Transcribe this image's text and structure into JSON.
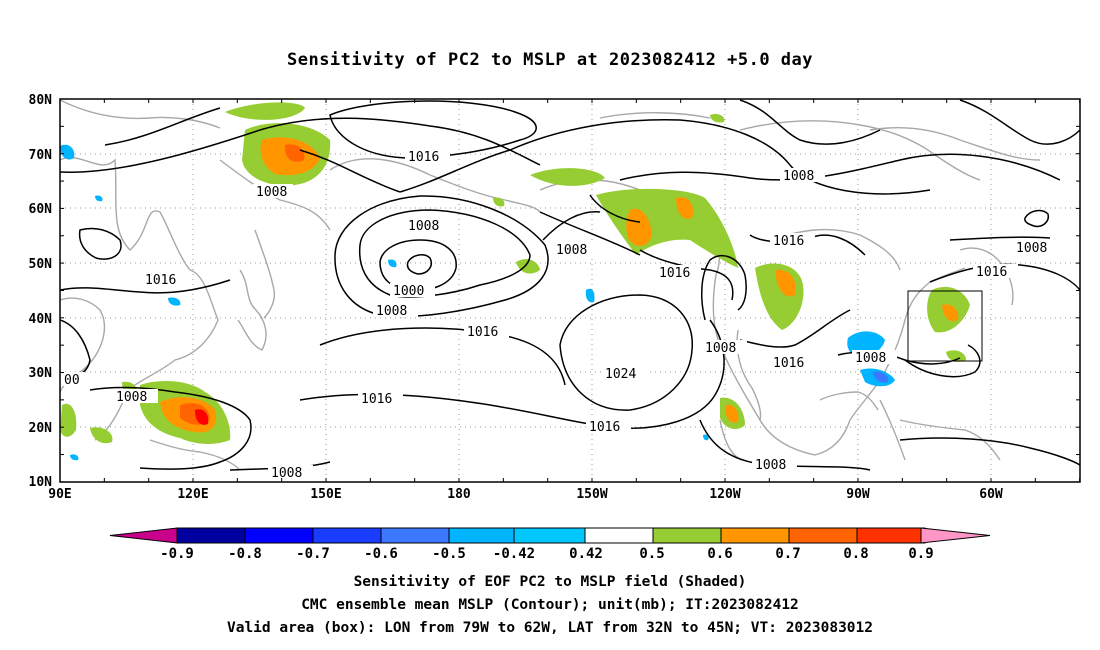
{
  "title": "Sensitivity of PC2 to MSLP at 2023082412 +5.0 day",
  "map": {
    "lat_labels": [
      "80N",
      "70N",
      "60N",
      "50N",
      "40N",
      "30N",
      "20N",
      "10N"
    ],
    "lon_labels": [
      "90E",
      "120E",
      "150E",
      "180",
      "150W",
      "120W",
      "90W",
      "60W"
    ],
    "contour_labels": [
      "1016",
      "1008",
      "1016",
      "1008",
      "1000",
      "1008",
      "1016",
      "1024",
      "1016",
      "1016",
      "1008",
      "1008",
      "1016",
      "1016",
      "1008",
      "1008",
      "1008",
      "1016",
      "1008",
      "1016",
      "1008",
      "00"
    ],
    "valid_box": {
      "lon_from": "79W",
      "lon_to": "62W",
      "lat_from": "32N",
      "lat_to": "45N"
    }
  },
  "colorbar": {
    "labels": [
      "-0.9",
      "-0.8",
      "-0.7",
      "-0.6",
      "-0.5",
      "-0.42",
      "0.42",
      "0.5",
      "0.6",
      "0.7",
      "0.8",
      "0.9"
    ],
    "colors": [
      "#c8008c",
      "#0000a0",
      "#0000ff",
      "#1a3cff",
      "#3c78ff",
      "#00b4ff",
      "#00c8ff",
      "#ffffff",
      "#96cd32",
      "#ff9600",
      "#ff6400",
      "#ff3200",
      "#ff0000",
      "#ff96c8"
    ]
  },
  "captions": {
    "line1": "Sensitivity of EOF PC2 to MSLP field (Shaded)",
    "line2": "CMC ensemble mean MSLP (Contour); unit(mb); IT:2023082412",
    "line3": "Valid area (box): LON from 79W to 62W, LAT from 32N to 45N; VT: 2023083012"
  }
}
